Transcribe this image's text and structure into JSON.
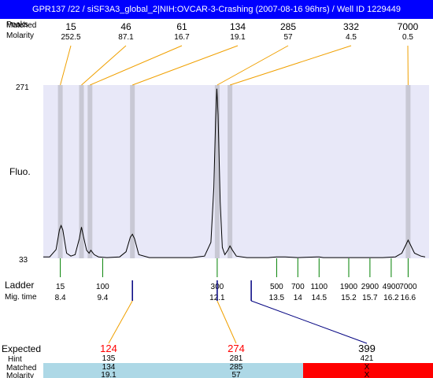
{
  "title": "GPR137 /22 / siSF3A3_global_2|NIH:OVCAR-3-Crashing (2007-08-16 96hrs) / Well ID 1229449",
  "labels": {
    "peaks_row1": "Peaks",
    "peaks_row2": "Matched",
    "molarity": "Molarity",
    "fluo": "Fluo.",
    "ladder": "Ladder",
    "mig_time": "Mig. time",
    "expected": "Expected",
    "hint": "Hint",
    "matched": "Matched",
    "molarity_bottom": "Molarity"
  },
  "colors": {
    "title_bg": "#0000ff",
    "plot_bg": "#e8e8f8",
    "band": "#c8c8d4",
    "trace": "#000000",
    "peak_connector": "#f0a000",
    "ladder_tick": "#008000",
    "marker_tick": "#000080",
    "expected_red": "#ff0000",
    "matched_row_bg": "#add8e6",
    "unmatched_row_bg": "#ff0000"
  },
  "chart_data": {
    "type": "line",
    "title": "",
    "xlabel": "",
    "ylabel": "Fluo.",
    "ylim": [
      33,
      271
    ],
    "y_ticks": [
      "271",
      "33"
    ],
    "xlim": [
      8.0,
      17.0
    ],
    "peaks": [
      {
        "size": "15",
        "molarity": "252.5",
        "time": 8.4
      },
      {
        "size": "46",
        "molarity": "87.1",
        "time": 8.9
      },
      {
        "size": "61",
        "molarity": "16.7",
        "time": 9.1
      },
      {
        "size": "134",
        "molarity": "19.1",
        "time": 10.1
      },
      {
        "size": "285",
        "molarity": "57",
        "time": 12.1
      },
      {
        "size": "332",
        "molarity": "4.5",
        "time": 12.4
      },
      {
        "size": "7000",
        "molarity": "0.5",
        "time": 16.6
      }
    ],
    "ladder": [
      {
        "size": "15",
        "time": "8.4"
      },
      {
        "size": "100",
        "time": "9.4"
      },
      {
        "size": "300",
        "time": "12.1"
      },
      {
        "size": "500",
        "time": "13.5"
      },
      {
        "size": "700",
        "time": "14"
      },
      {
        "size": "1100",
        "time": "14.5"
      },
      {
        "size": "1900",
        "time": "15.2"
      },
      {
        "size": "2900",
        "time": "15.7"
      },
      {
        "size": "4900",
        "time": "16.2"
      },
      {
        "size": "7000",
        "time": "16.6"
      }
    ],
    "trace_points": [
      [
        8.0,
        35
      ],
      [
        8.15,
        35
      ],
      [
        8.3,
        45
      ],
      [
        8.38,
        72
      ],
      [
        8.42,
        78
      ],
      [
        8.46,
        72
      ],
      [
        8.55,
        40
      ],
      [
        8.65,
        36
      ],
      [
        8.75,
        38
      ],
      [
        8.85,
        60
      ],
      [
        8.9,
        76
      ],
      [
        8.95,
        62
      ],
      [
        9.02,
        44
      ],
      [
        9.08,
        40
      ],
      [
        9.12,
        44
      ],
      [
        9.2,
        38
      ],
      [
        9.3,
        35
      ],
      [
        9.5,
        34
      ],
      [
        9.8,
        35
      ],
      [
        9.95,
        42
      ],
      [
        10.05,
        62
      ],
      [
        10.1,
        66
      ],
      [
        10.15,
        60
      ],
      [
        10.25,
        38
      ],
      [
        10.5,
        34
      ],
      [
        11.0,
        34
      ],
      [
        11.5,
        34
      ],
      [
        11.8,
        36
      ],
      [
        11.95,
        55
      ],
      [
        12.02,
        130
      ],
      [
        12.06,
        220
      ],
      [
        12.09,
        266
      ],
      [
        12.12,
        230
      ],
      [
        12.17,
        110
      ],
      [
        12.22,
        48
      ],
      [
        12.28,
        38
      ],
      [
        12.35,
        44
      ],
      [
        12.4,
        50
      ],
      [
        12.46,
        44
      ],
      [
        12.55,
        36
      ],
      [
        12.8,
        34
      ],
      [
        13.3,
        34
      ],
      [
        13.5,
        35
      ],
      [
        13.7,
        35
      ],
      [
        14.0,
        34
      ],
      [
        14.45,
        35
      ],
      [
        14.5,
        35
      ],
      [
        14.6,
        34
      ],
      [
        15.0,
        34
      ],
      [
        15.5,
        34
      ],
      [
        16.0,
        34
      ],
      [
        16.3,
        35
      ],
      [
        16.45,
        40
      ],
      [
        16.55,
        52
      ],
      [
        16.6,
        58
      ],
      [
        16.65,
        52
      ],
      [
        16.75,
        40
      ],
      [
        16.9,
        36
      ],
      [
        17.0,
        35
      ]
    ],
    "expected": [
      {
        "value": "124",
        "highlight": true,
        "hint": "135",
        "matched": "134",
        "molarity": "19.1",
        "matched_ok": true
      },
      {
        "value": "274",
        "highlight": true,
        "hint": "281",
        "matched": "285",
        "molarity": "57",
        "matched_ok": true
      },
      {
        "value": "399",
        "highlight": false,
        "hint": "421",
        "matched": "X",
        "molarity": "X",
        "matched_ok": false
      }
    ]
  }
}
